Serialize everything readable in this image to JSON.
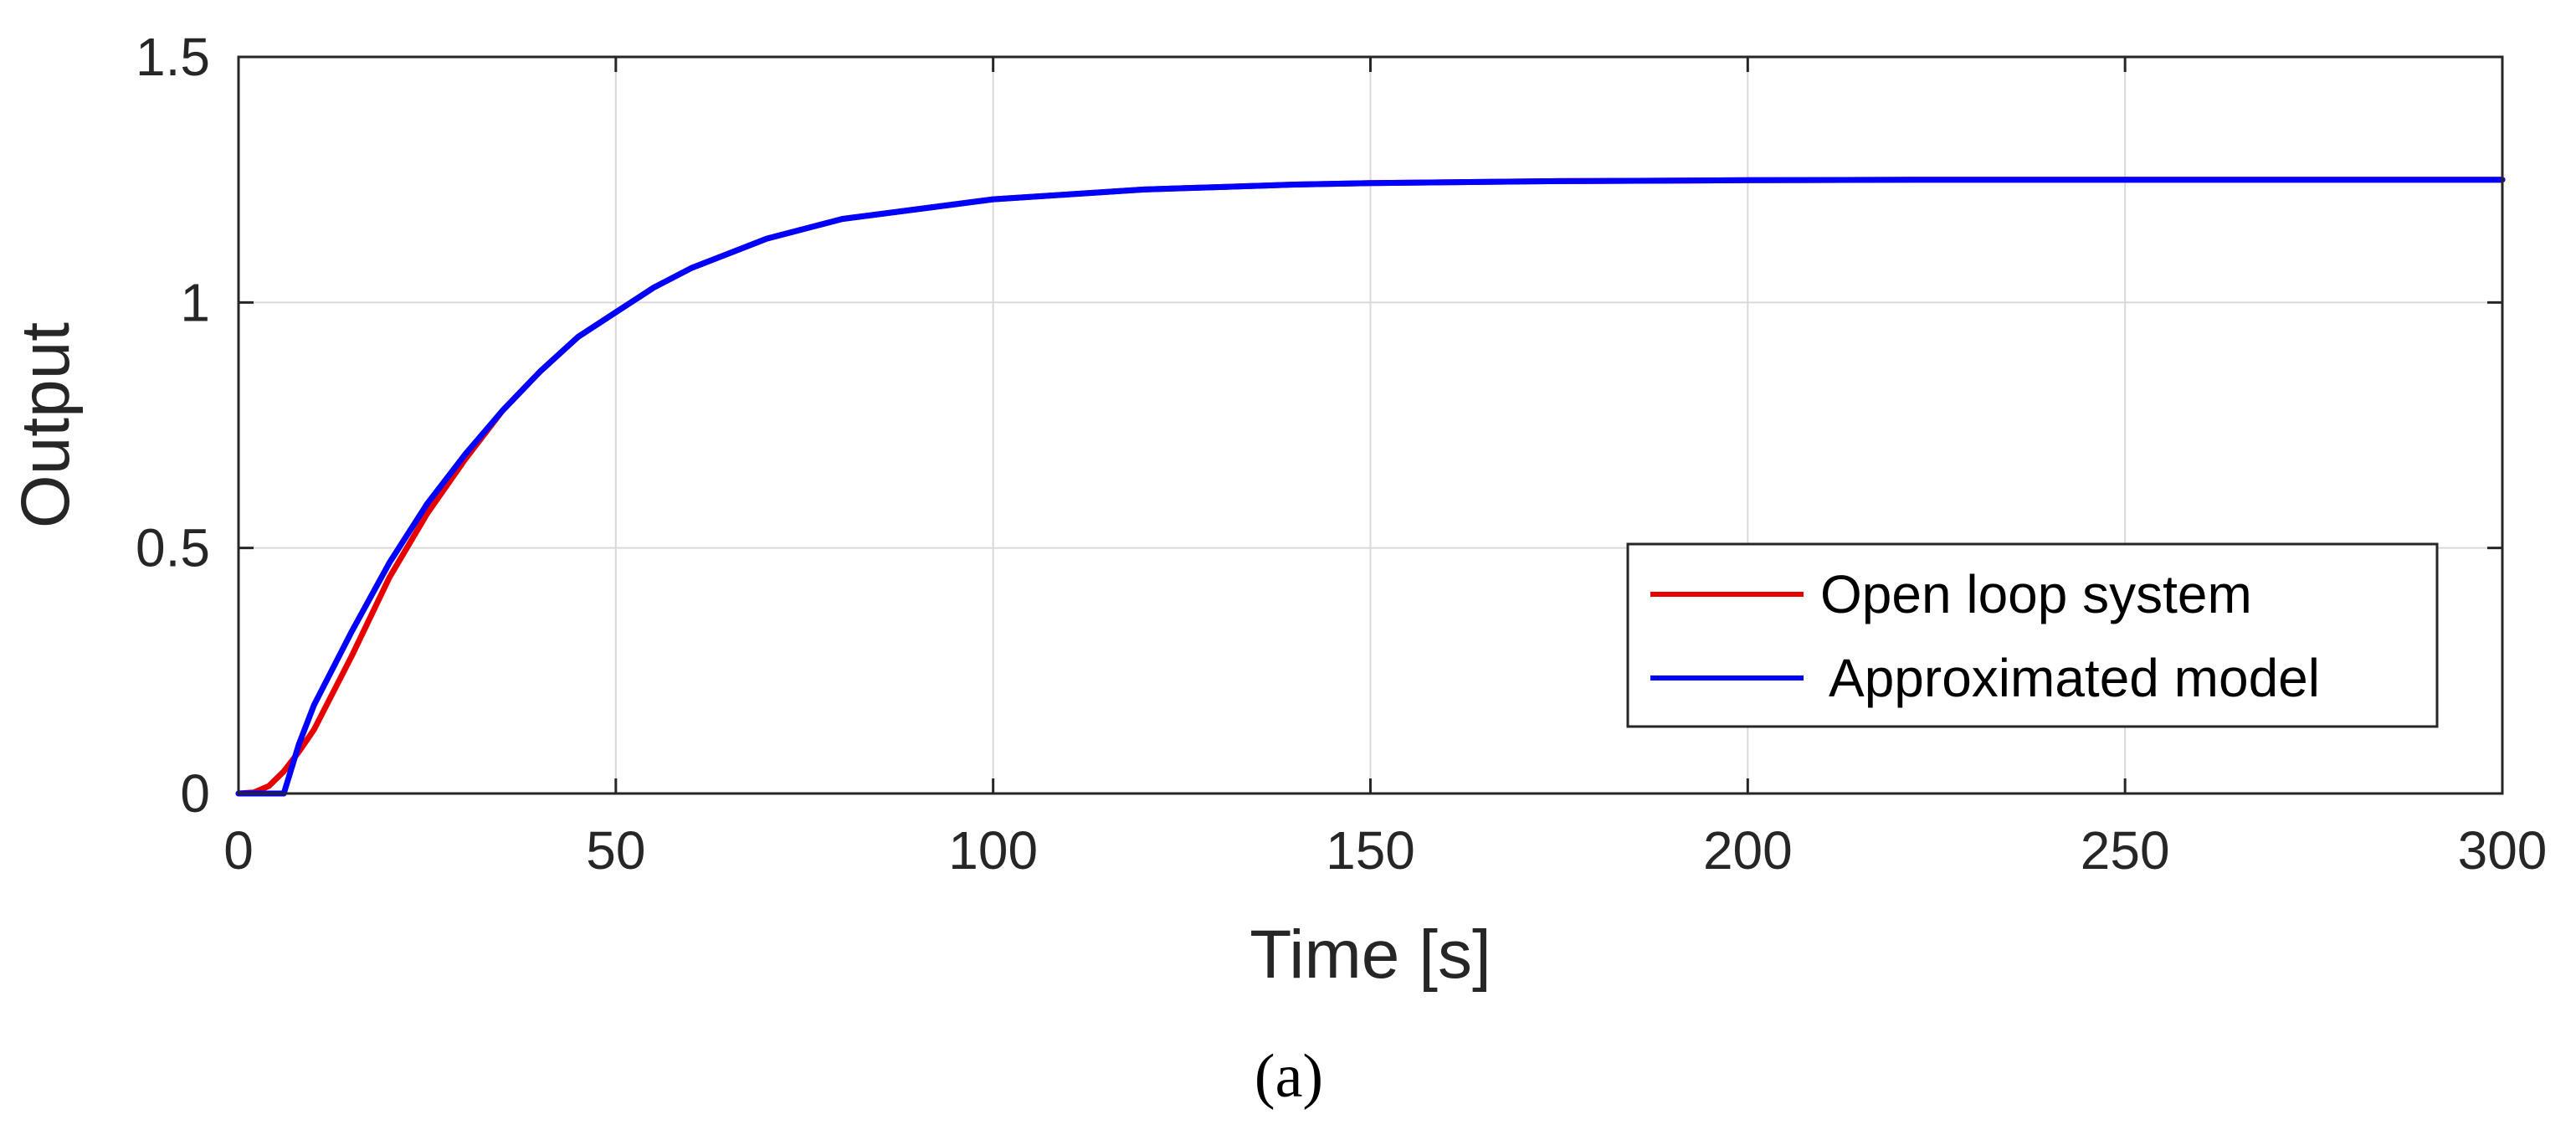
{
  "chart_data": {
    "type": "line",
    "title": "",
    "xlabel": "Time [s]",
    "ylabel": "Output",
    "xlim": [
      0,
      300
    ],
    "ylim": [
      0,
      1.5
    ],
    "x_ticks": [
      0,
      50,
      100,
      150,
      200,
      250,
      300
    ],
    "y_ticks": [
      0,
      0.5,
      1,
      1.5
    ],
    "x_tick_labels": [
      "0",
      "50",
      "100",
      "150",
      "200",
      "250",
      "300"
    ],
    "y_tick_labels": [
      "0",
      "0.5",
      "1",
      "1.5"
    ],
    "grid": true,
    "legend_position": "bottom-right",
    "series": [
      {
        "name": "Open loop system",
        "color": "#e60000",
        "x": [
          0,
          2,
          4,
          6,
          8,
          10,
          15,
          20,
          25,
          30,
          35,
          40,
          45,
          50,
          55,
          60,
          70,
          80,
          90,
          100,
          110,
          120,
          130,
          140,
          150,
          175,
          200,
          225,
          250,
          275,
          300
        ],
        "y": [
          0,
          0.002,
          0.015,
          0.045,
          0.085,
          0.13,
          0.28,
          0.44,
          0.57,
          0.68,
          0.78,
          0.86,
          0.93,
          0.98,
          1.03,
          1.07,
          1.13,
          1.17,
          1.19,
          1.21,
          1.22,
          1.23,
          1.235,
          1.24,
          1.243,
          1.247,
          1.249,
          1.25,
          1.25,
          1.25,
          1.25
        ]
      },
      {
        "name": "Approximated model",
        "color": "#0000ff",
        "x": [
          0,
          4,
          6,
          8,
          10,
          15,
          20,
          25,
          30,
          35,
          40,
          45,
          50,
          55,
          60,
          70,
          80,
          90,
          100,
          110,
          120,
          130,
          140,
          150,
          175,
          200,
          225,
          250,
          275,
          300
        ],
        "y": [
          0,
          0,
          0,
          0.1,
          0.18,
          0.33,
          0.47,
          0.59,
          0.69,
          0.78,
          0.86,
          0.93,
          0.98,
          1.03,
          1.07,
          1.13,
          1.17,
          1.19,
          1.21,
          1.22,
          1.23,
          1.235,
          1.24,
          1.243,
          1.247,
          1.249,
          1.25,
          1.25,
          1.25,
          1.25
        ]
      }
    ],
    "caption": "(a)"
  }
}
